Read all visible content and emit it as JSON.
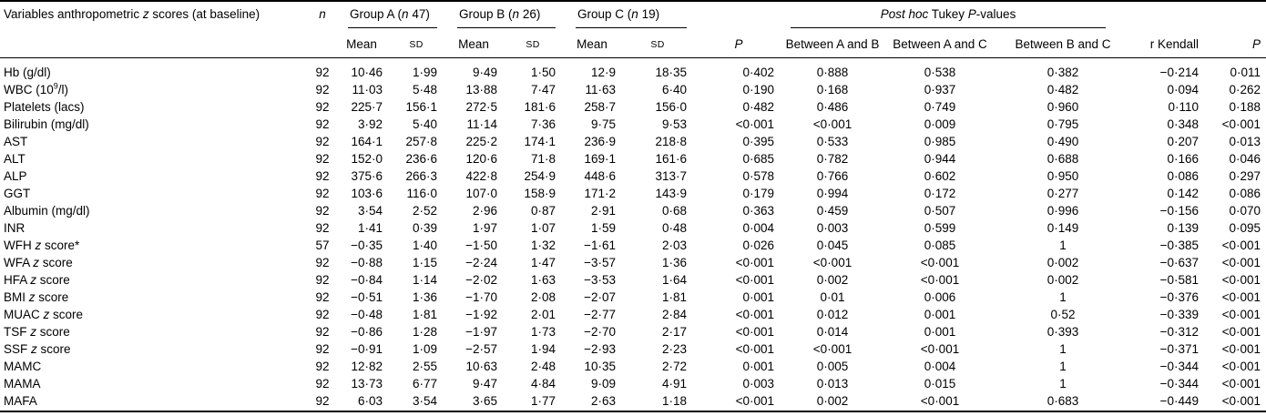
{
  "table": {
    "header": {
      "variables": "Variables anthropometric <i>z</i> scores (at baseline)",
      "n": "<i>n</i>",
      "group_a": "Group A (<i>n</i> 47)",
      "group_b": "Group B (<i>n</i> 26)",
      "group_c": "Group C (<i>n</i> 19)",
      "mean": "Mean",
      "sd": "SD",
      "p": "<i>P</i>",
      "posthoc": "<i>Post hoc</i> Tukey <i>P</i>-values",
      "between_a_b": "Between A and B",
      "between_a_c": "Between A and C",
      "between_b_c": "Between B and C",
      "r_kendall": "r Kendall"
    },
    "rows": [
      {
        "label": "Hb (g/dl)",
        "values": [
          "92",
          "10·46",
          "1·99",
          "9·49",
          "1·50",
          "12·9",
          "18·35",
          "0·402",
          "0·888",
          "0·538",
          "0·382",
          "−0·214",
          "0·011"
        ]
      },
      {
        "label": "WBC (10<sup>9</sup>/l)",
        "values": [
          "92",
          "11·03",
          "5·48",
          "13·88",
          "7·47",
          "11·63",
          "6·40",
          "0·190",
          "0·168",
          "0·937",
          "0·482",
          "0·094",
          "0·262"
        ]
      },
      {
        "label": "Platelets (lacs)",
        "values": [
          "92",
          "225·7",
          "156·1",
          "272·5",
          "181·6",
          "258·7",
          "156·0",
          "0·482",
          "0·486",
          "0·749",
          "0·960",
          "0·110",
          "0·188"
        ]
      },
      {
        "label": "Bilirubin (mg/dl)",
        "values": [
          "92",
          "3·92",
          "5·40",
          "11·14",
          "7·36",
          "9·75",
          "9·53",
          "<0·001",
          "<0·001",
          "0·009",
          "0·795",
          "0·348",
          "<0·001"
        ]
      },
      {
        "label": "AST",
        "values": [
          "92",
          "164·1",
          "257·8",
          "225·2",
          "174·1",
          "236·9",
          "218·8",
          "0·395",
          "0·533",
          "0·985",
          "0·490",
          "0·207",
          "0·013"
        ]
      },
      {
        "label": "ALT",
        "values": [
          "92",
          "152·0",
          "236·6",
          "120·6",
          "71·8",
          "169·1",
          "161·6",
          "0·685",
          "0·782",
          "0·944",
          "0·688",
          "0·166",
          "0·046"
        ]
      },
      {
        "label": "ALP",
        "values": [
          "92",
          "375·6",
          "266·3",
          "422·8",
          "254·9",
          "448·6",
          "313·7",
          "0·578",
          "0·766",
          "0·602",
          "0·950",
          "0·086",
          "0·297"
        ]
      },
      {
        "label": "GGT",
        "values": [
          "92",
          "103·6",
          "116·0",
          "107·0",
          "158·9",
          "171·2",
          "143·9",
          "0·179",
          "0·994",
          "0·172",
          "0·277",
          "0·142",
          "0·086"
        ]
      },
      {
        "label": "Albumin (mg/dl)",
        "values": [
          "92",
          "3·54",
          "2·52",
          "2·96",
          "0·87",
          "2·91",
          "0·68",
          "0·363",
          "0·459",
          "0·507",
          "0·996",
          "−0·156",
          "0·070"
        ]
      },
      {
        "label": "INR",
        "values": [
          "92",
          "1·41",
          "0·39",
          "1·97",
          "1·07",
          "1·59",
          "0·48",
          "0·004",
          "0·003",
          "0·599",
          "0·149",
          "0·139",
          "0·095"
        ]
      },
      {
        "label": "WFH <i>z</i> score*",
        "values": [
          "57",
          "−0·35",
          "1·40",
          "−1·50",
          "1·32",
          "−1·61",
          "2·03",
          "0·026",
          "0·045",
          "0·085",
          "1",
          "−0·385",
          "<0·001"
        ]
      },
      {
        "label": "WFA <i>z</i> score",
        "values": [
          "92",
          "−0·88",
          "1·15",
          "−2·24",
          "1·47",
          "−3·57",
          "1·36",
          "<0·001",
          "<0·001",
          "<0·001",
          "0·002",
          "−0·637",
          "<0·001"
        ]
      },
      {
        "label": "HFA <i>z</i> score",
        "values": [
          "92",
          "−0·84",
          "1·14",
          "−2·02",
          "1·63",
          "−3·53",
          "1·64",
          "<0·001",
          "0·002",
          "<0·001",
          "0·002",
          "−0·581",
          "<0·001"
        ]
      },
      {
        "label": "BMI <i>z</i> score",
        "values": [
          "92",
          "−0·51",
          "1·36",
          "−1·70",
          "2·08",
          "−2·07",
          "1·81",
          "0·001",
          "0·01",
          "0·006",
          "1",
          "−0·376",
          "<0·001"
        ]
      },
      {
        "label": "MUAC <i>z</i> score",
        "values": [
          "92",
          "−0·48",
          "1·81",
          "−1·92",
          "2·01",
          "−2·77",
          "2·84",
          "<0·001",
          "0·012",
          "0·001",
          "0·52",
          "−0·339",
          "<0·001"
        ]
      },
      {
        "label": "TSF <i>z</i> score",
        "values": [
          "92",
          "−0·86",
          "1·28",
          "−1·97",
          "1·73",
          "−2·70",
          "2·17",
          "<0·001",
          "0·014",
          "0·001",
          "0·393",
          "−0·312",
          "<0·001"
        ]
      },
      {
        "label": "SSF <i>z</i> score",
        "values": [
          "92",
          "−0·91",
          "1·09",
          "−2·57",
          "1·94",
          "−2·93",
          "2·23",
          "<0·001",
          "<0·001",
          "<0·001",
          "1",
          "−0·371",
          "<0·001"
        ]
      },
      {
        "label": "MAMC",
        "values": [
          "92",
          "12·82",
          "2·55",
          "10·63",
          "2·48",
          "10·35",
          "2·72",
          "0·001",
          "0·005",
          "0·004",
          "1",
          "−0·344",
          "<0·001"
        ]
      },
      {
        "label": "MAMA",
        "values": [
          "92",
          "13·73",
          "6·77",
          "9·47",
          "4·84",
          "9·09",
          "4·91",
          "0·003",
          "0·013",
          "0·015",
          "1",
          "−0·344",
          "<0·001"
        ]
      },
      {
        "label": "MAFA",
        "values": [
          "92",
          "6·03",
          "3·54",
          "3·65",
          "1·77",
          "2·63",
          "1·18",
          "<0·001",
          "0·002",
          "<0·001",
          "0·683",
          "−0·449",
          "<0·001"
        ]
      }
    ]
  }
}
